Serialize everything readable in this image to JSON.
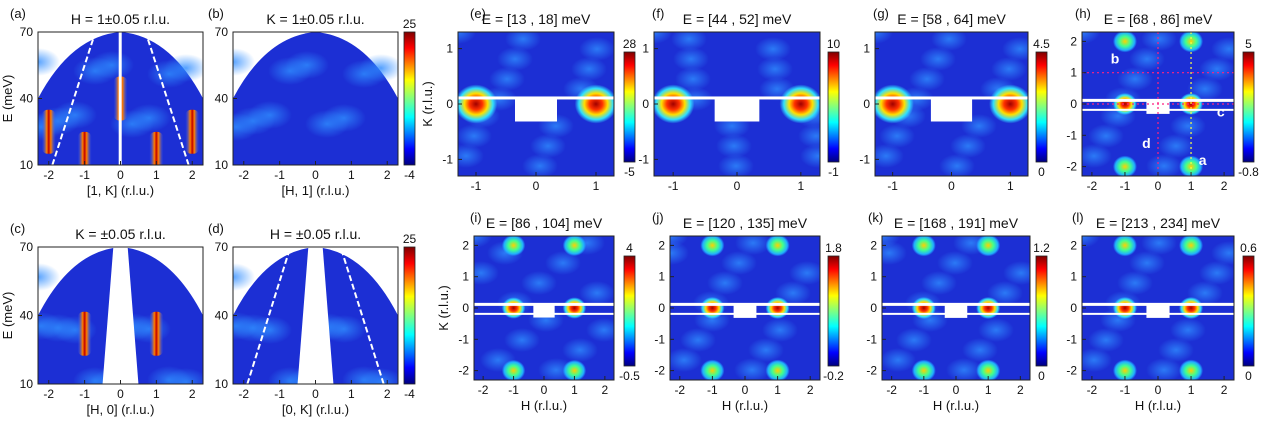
{
  "figure": {
    "colors": {
      "bg_low": "#1c2fd4",
      "colormap": [
        "#00007f",
        "#0000ff",
        "#0080ff",
        "#00ffff",
        "#80ff80",
        "#ffff00",
        "#ff8000",
        "#ff0000",
        "#7f0000"
      ]
    },
    "panels": [
      {
        "id": "a",
        "label": "(a)",
        "title": "H = 1±0.05 r.l.u.",
        "kind": "dispersion",
        "xlabel": "[1, K] (r.l.u.)",
        "ylabel": "E (meV)",
        "xticks": [
          "-2",
          "-1",
          "0",
          "1",
          "2"
        ],
        "yticks": [
          "70",
          "40",
          "10"
        ],
        "colorbar": {
          "max": "25",
          "min": "-4"
        }
      },
      {
        "id": "b",
        "label": "(b)",
        "title": "K = 1±0.05 r.l.u.",
        "kind": "dispersion",
        "xlabel": "[H, 1] (r.l.u.)",
        "ylabel": "",
        "xticks": [
          "-2",
          "-1",
          "0",
          "1",
          "2"
        ],
        "yticks": [
          "70",
          "40",
          "10"
        ],
        "colorbar": {
          "max": "25",
          "min": "-4"
        }
      },
      {
        "id": "c",
        "label": "(c)",
        "title": "K = ±0.05 r.l.u.",
        "kind": "dispersion",
        "xlabel": "[H, 0] (r.l.u.)",
        "ylabel": "E (meV)",
        "xticks": [
          "-2",
          "-1",
          "0",
          "1",
          "2"
        ],
        "yticks": [
          "70",
          "40",
          "10"
        ],
        "colorbar": {
          "max": "25",
          "min": "-4"
        }
      },
      {
        "id": "d",
        "label": "(d)",
        "title": "H = ±0.05 r.l.u.",
        "kind": "dispersion",
        "xlabel": "[0, K] (r.l.u.)",
        "ylabel": "",
        "xticks": [
          "-2",
          "-1",
          "0",
          "1",
          "2"
        ],
        "yticks": [
          "70",
          "40",
          "10"
        ],
        "colorbar": {
          "max": "25",
          "min": "-4"
        }
      },
      {
        "id": "e",
        "label": "(e)",
        "title": "E = [13 , 18] meV",
        "kind": "constE",
        "xlabel": "",
        "ylabel": "K (r.l.u.)",
        "xticks": [
          "-1",
          "0",
          "1"
        ],
        "yticks": [
          "1",
          "0",
          "-1"
        ],
        "colorbar": {
          "max": "28",
          "min": "-5"
        }
      },
      {
        "id": "f",
        "label": "(f)",
        "title": "E = [44 , 52] meV",
        "kind": "constE",
        "xlabel": "",
        "ylabel": "",
        "xticks": [
          "-1",
          "0",
          "1"
        ],
        "yticks": [
          "1",
          "0",
          "-1"
        ],
        "colorbar": {
          "max": "10",
          "min": "-1"
        }
      },
      {
        "id": "g",
        "label": "(g)",
        "title": "E = [58 , 64] meV",
        "kind": "constE",
        "xlabel": "",
        "ylabel": "",
        "xticks": [
          "-1",
          "0",
          "1"
        ],
        "yticks": [
          "1",
          "0",
          "-1"
        ],
        "colorbar": {
          "max": "4.5",
          "min": "0"
        }
      },
      {
        "id": "h",
        "label": "(h)",
        "title": "E = [68 , 86] meV",
        "kind": "constE",
        "xlabel": "",
        "ylabel": "",
        "xticks": [
          "-2",
          "-1",
          "0",
          "1",
          "2"
        ],
        "yticks": [
          "2",
          "1",
          "0",
          "-1",
          "-2"
        ],
        "colorbar": {
          "max": "5",
          "min": "-0.8"
        },
        "annotations": [
          "b",
          "c",
          "d",
          "a"
        ]
      },
      {
        "id": "i",
        "label": "(i)",
        "title": "E = [86 , 104] meV",
        "kind": "constE",
        "xlabel": "H (r.l.u.)",
        "ylabel": "K (r.l.u.)",
        "xticks": [
          "-2",
          "-1",
          "0",
          "1",
          "2"
        ],
        "yticks": [
          "2",
          "1",
          "0",
          "-1",
          "-2"
        ],
        "colorbar": {
          "max": "4",
          "min": "-0.5"
        }
      },
      {
        "id": "j",
        "label": "(j)",
        "title": "E = [120 , 135] meV",
        "kind": "constE",
        "xlabel": "H (r.l.u.)",
        "ylabel": "",
        "xticks": [
          "-2",
          "-1",
          "0",
          "1",
          "2"
        ],
        "yticks": [
          "2",
          "1",
          "0",
          "-1",
          "-2"
        ],
        "colorbar": {
          "max": "1.8",
          "min": "-0.2"
        }
      },
      {
        "id": "k",
        "label": "(k)",
        "title": "E = [168 , 191] meV",
        "kind": "constE",
        "xlabel": "H (r.l.u.)",
        "ylabel": "",
        "xticks": [
          "-2",
          "-1",
          "0",
          "1",
          "2"
        ],
        "yticks": [
          "2",
          "1",
          "0",
          "-1",
          "-2"
        ],
        "colorbar": {
          "max": "1.2",
          "min": "0"
        }
      },
      {
        "id": "l",
        "label": "(l)",
        "title": "E = [213 , 234] meV",
        "kind": "constE",
        "xlabel": "H (r.l.u.)",
        "ylabel": "",
        "xticks": [
          "-2",
          "-1",
          "0",
          "1",
          "2"
        ],
        "yticks": [
          "2",
          "1",
          "0",
          "-1",
          "-2"
        ],
        "colorbar": {
          "max": "0.6",
          "min": "0"
        }
      }
    ]
  },
  "chart_data": [
    {
      "type": "heatmap",
      "panel": "a",
      "title": "H = 1±0.05 r.l.u.",
      "xlabel": "[1, K] (r.l.u.)",
      "ylabel": "E (meV)",
      "xlim": [
        -2.3,
        2.3
      ],
      "ylim": [
        10,
        70
      ],
      "clim": [
        -4,
        25
      ],
      "features": [
        {
          "x": -2,
          "E": 25
        },
        {
          "x": -1,
          "E": 15
        },
        {
          "x": 0,
          "E": 40
        },
        {
          "x": 1,
          "E": 15
        },
        {
          "x": 2,
          "E": 25
        }
      ]
    },
    {
      "type": "heatmap",
      "panel": "b",
      "title": "K = 1±0.05 r.l.u.",
      "xlabel": "[H, 1] (r.l.u.)",
      "ylabel": "",
      "xlim": [
        -2.3,
        2.3
      ],
      "ylim": [
        10,
        70
      ],
      "clim": [
        -4,
        25
      ]
    },
    {
      "type": "heatmap",
      "panel": "c",
      "title": "K = ±0.05 r.l.u.",
      "xlabel": "[H, 0] (r.l.u.)",
      "ylabel": "E (meV)",
      "xlim": [
        -2.3,
        2.3
      ],
      "ylim": [
        10,
        70
      ],
      "clim": [
        -4,
        25
      ],
      "features": [
        {
          "x": -1,
          "E": 32
        },
        {
          "x": 1,
          "E": 32
        }
      ]
    },
    {
      "type": "heatmap",
      "panel": "d",
      "title": "H = ±0.05 r.l.u.",
      "xlabel": "[0, K] (r.l.u.)",
      "ylabel": "",
      "xlim": [
        -2.3,
        2.3
      ],
      "ylim": [
        10,
        70
      ],
      "clim": [
        -4,
        25
      ]
    },
    {
      "type": "heatmap",
      "panel": "e",
      "title": "E = [13 , 18] meV",
      "xlabel": "",
      "ylabel": "K (r.l.u.)",
      "xlim": [
        -1.3,
        1.3
      ],
      "ylim": [
        -1.3,
        1.3
      ],
      "clim": [
        -5,
        28
      ],
      "peaks": [
        [
          -1,
          0
        ],
        [
          1,
          0
        ]
      ]
    },
    {
      "type": "heatmap",
      "panel": "f",
      "title": "E = [44 , 52] meV",
      "xlabel": "",
      "ylabel": "",
      "xlim": [
        -1.3,
        1.3
      ],
      "ylim": [
        -1.3,
        1.3
      ],
      "clim": [
        -1,
        10
      ],
      "peaks": [
        [
          -1,
          0
        ],
        [
          1,
          0
        ]
      ]
    },
    {
      "type": "heatmap",
      "panel": "g",
      "title": "E = [58 , 64] meV",
      "xlabel": "",
      "ylabel": "",
      "xlim": [
        -1.3,
        1.3
      ],
      "ylim": [
        -1.3,
        1.3
      ],
      "clim": [
        0,
        4.5
      ],
      "peaks": [
        [
          -1,
          0
        ],
        [
          1,
          0
        ]
      ]
    },
    {
      "type": "heatmap",
      "panel": "h",
      "title": "E = [68 , 86] meV",
      "xlabel": "",
      "ylabel": "",
      "xlim": [
        -2.3,
        2.3
      ],
      "ylim": [
        -2.3,
        2.3
      ],
      "clim": [
        -0.8,
        5
      ],
      "peaks": [
        [
          -1,
          0
        ],
        [
          1,
          0
        ],
        [
          -1,
          2
        ],
        [
          1,
          2
        ],
        [
          -1,
          -2
        ],
        [
          1,
          -2
        ]
      ]
    },
    {
      "type": "heatmap",
      "panel": "i",
      "title": "E = [86 , 104] meV",
      "xlabel": "H (r.l.u.)",
      "ylabel": "K (r.l.u.)",
      "xlim": [
        -2.3,
        2.3
      ],
      "ylim": [
        -2.3,
        2.3
      ],
      "clim": [
        -0.5,
        4
      ],
      "peaks": [
        [
          -1,
          0
        ],
        [
          1,
          0
        ],
        [
          -1,
          2
        ],
        [
          1,
          2
        ],
        [
          -1,
          -2
        ],
        [
          1,
          -2
        ]
      ]
    },
    {
      "type": "heatmap",
      "panel": "j",
      "title": "E = [120 , 135] meV",
      "xlabel": "H (r.l.u.)",
      "ylabel": "",
      "xlim": [
        -2.3,
        2.3
      ],
      "ylim": [
        -2.3,
        2.3
      ],
      "clim": [
        -0.2,
        1.8
      ],
      "peaks": [
        [
          -1,
          0
        ],
        [
          1,
          0
        ],
        [
          -1,
          2
        ],
        [
          1,
          2
        ],
        [
          -1,
          -2
        ],
        [
          1,
          -2
        ]
      ]
    },
    {
      "type": "heatmap",
      "panel": "k",
      "title": "E = [168 , 191] meV",
      "xlabel": "H (r.l.u.)",
      "ylabel": "",
      "xlim": [
        -2.3,
        2.3
      ],
      "ylim": [
        -2.3,
        2.3
      ],
      "clim": [
        0,
        1.2
      ],
      "peaks": [
        [
          -1,
          0
        ],
        [
          1,
          0
        ],
        [
          -1,
          2
        ],
        [
          1,
          2
        ],
        [
          -1,
          -2
        ],
        [
          1,
          -2
        ]
      ]
    },
    {
      "type": "heatmap",
      "panel": "l",
      "title": "E = [213 , 234] meV",
      "xlabel": "H (r.l.u.)",
      "ylabel": "",
      "xlim": [
        -2.3,
        2.3
      ],
      "ylim": [
        -2.3,
        2.3
      ],
      "clim": [
        0,
        0.6
      ],
      "peaks": [
        [
          -1,
          0
        ],
        [
          1,
          0
        ],
        [
          -1,
          2
        ],
        [
          1,
          2
        ],
        [
          -1,
          -2
        ],
        [
          1,
          -2
        ]
      ]
    }
  ]
}
